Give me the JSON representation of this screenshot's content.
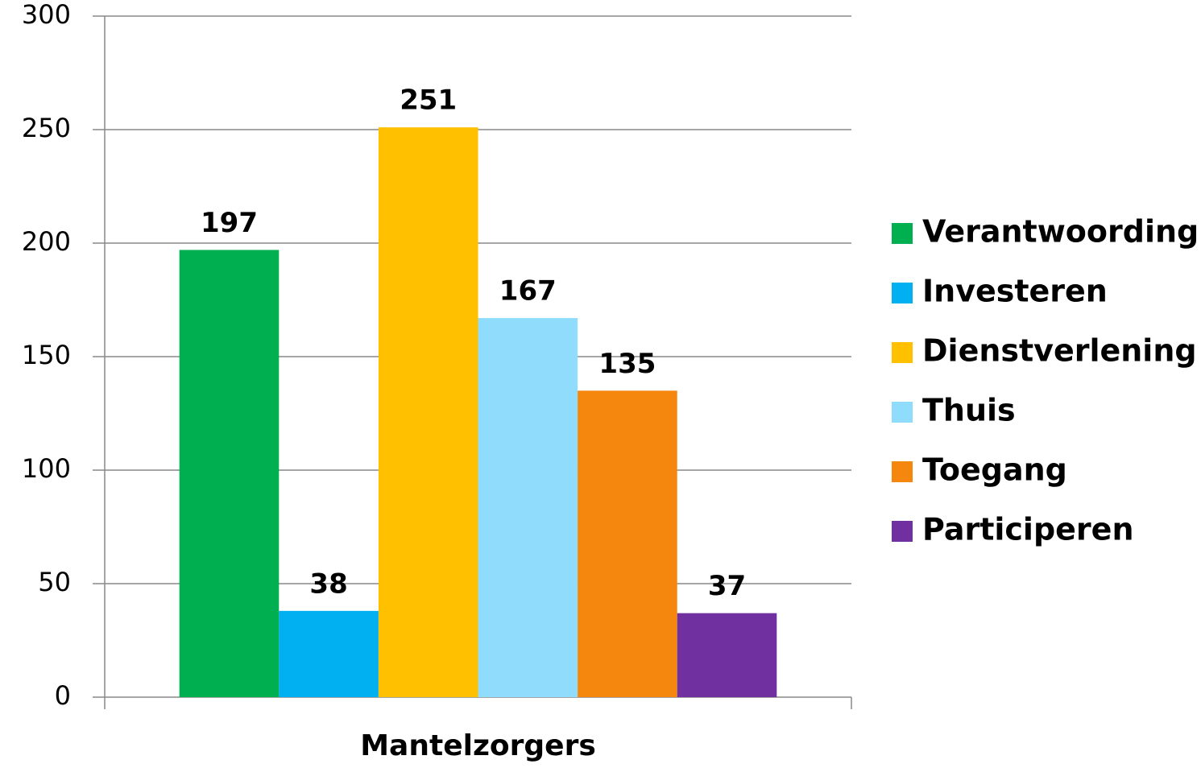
{
  "chart_data": {
    "type": "bar",
    "categories": [
      "Mantelzorgers"
    ],
    "series": [
      {
        "name": "Verantwoording",
        "color": "#00b050",
        "values": [
          197
        ]
      },
      {
        "name": "Investeren",
        "color": "#00b0f0",
        "values": [
          38
        ]
      },
      {
        "name": "Dienstverlening",
        "color": "#ffc000",
        "values": [
          251
        ]
      },
      {
        "name": "Thuis",
        "color": "#8fdcfc",
        "values": [
          167
        ]
      },
      {
        "name": "Toegang",
        "color": "#f5870f",
        "values": [
          135
        ]
      },
      {
        "name": "Participeren",
        "color": "#7030a0",
        "values": [
          37
        ]
      }
    ],
    "ylim": [
      0,
      300
    ],
    "yticks": [
      0,
      50,
      100,
      150,
      200,
      250,
      300
    ],
    "grid": true,
    "legend": "right"
  }
}
